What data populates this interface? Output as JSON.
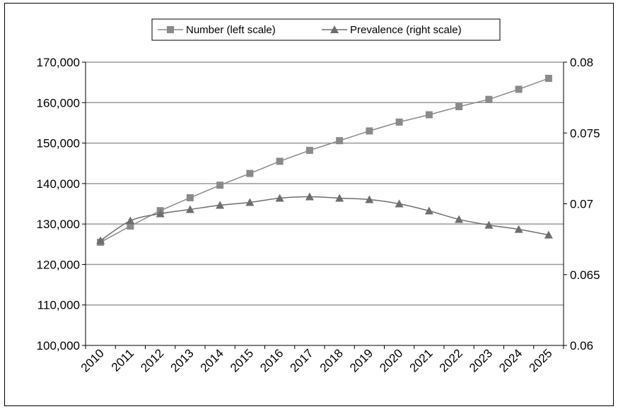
{
  "chart_data": {
    "type": "line",
    "x": [
      "2010",
      "2011",
      "2012",
      "2013",
      "2014",
      "2015",
      "2016",
      "2017",
      "2018",
      "2019",
      "2020",
      "2021",
      "2022",
      "2023",
      "2024",
      "2025"
    ],
    "series": [
      {
        "name": "Number (left scale)",
        "axis": "left",
        "marker": "square",
        "color": "#8a8a8a",
        "values": [
          125500,
          129500,
          133300,
          136500,
          139600,
          142500,
          145500,
          148200,
          150600,
          153000,
          155200,
          157000,
          159000,
          160800,
          163300,
          166000
        ]
      },
      {
        "name": "Prevalence (right scale)",
        "axis": "right",
        "marker": "triangle",
        "color": "#6e6e6e",
        "values": [
          0.0674,
          0.0688,
          0.0693,
          0.0696,
          0.0699,
          0.0701,
          0.0704,
          0.0705,
          0.0704,
          0.0703,
          0.07,
          0.0695,
          0.0689,
          0.0685,
          0.0682,
          0.0678
        ]
      }
    ],
    "y_left": {
      "ylim": [
        100000,
        170000
      ],
      "ticks": [
        100000,
        110000,
        120000,
        130000,
        140000,
        150000,
        160000,
        170000
      ],
      "tick_labels": [
        "100,000",
        "110,000",
        "120,000",
        "130,000",
        "140,000",
        "150,000",
        "160,000",
        "170,000"
      ]
    },
    "y_right": {
      "ylim": [
        0.06,
        0.08
      ],
      "ticks": [
        0.06,
        0.065,
        0.07,
        0.075,
        0.08
      ],
      "tick_labels": [
        "0.06",
        "0.065",
        "0.07",
        "0.075",
        "0.08"
      ]
    },
    "grid": true,
    "legend_position": "top-center",
    "title": "",
    "xlabel": "",
    "ylabel": ""
  }
}
